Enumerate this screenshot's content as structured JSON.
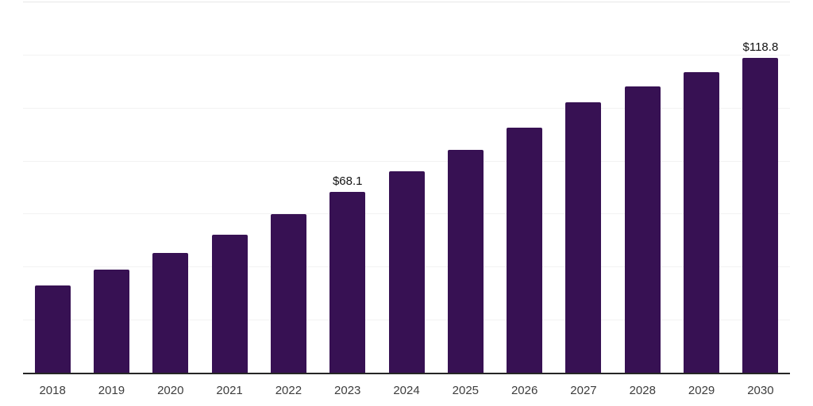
{
  "colors": {
    "background": "#ffffff",
    "bar": "#371153",
    "axis": "#262626",
    "grid": "#f2f2f2",
    "grid_top": "#e8e8e8",
    "tick": "#3d3d3d",
    "value_label": "#141414"
  },
  "chart_data": {
    "type": "bar",
    "title": "",
    "xlabel": "",
    "ylabel": "",
    "categories": [
      "2018",
      "2019",
      "2020",
      "2021",
      "2022",
      "2023",
      "2024",
      "2025",
      "2026",
      "2027",
      "2028",
      "2029",
      "2030"
    ],
    "values": [
      33.0,
      38.8,
      45.1,
      52.2,
      59.9,
      68.1,
      76.1,
      84.1,
      92.6,
      101.9,
      107.9,
      113.5,
      118.8
    ],
    "value_labels": {
      "2023": "$68.1",
      "2030": "$118.8"
    },
    "unit_prefix": "$",
    "ylim": [
      0,
      140
    ],
    "grid_step": 20,
    "grid": "horizontal-only",
    "y_tick_labels_visible": false,
    "legend": "none"
  }
}
